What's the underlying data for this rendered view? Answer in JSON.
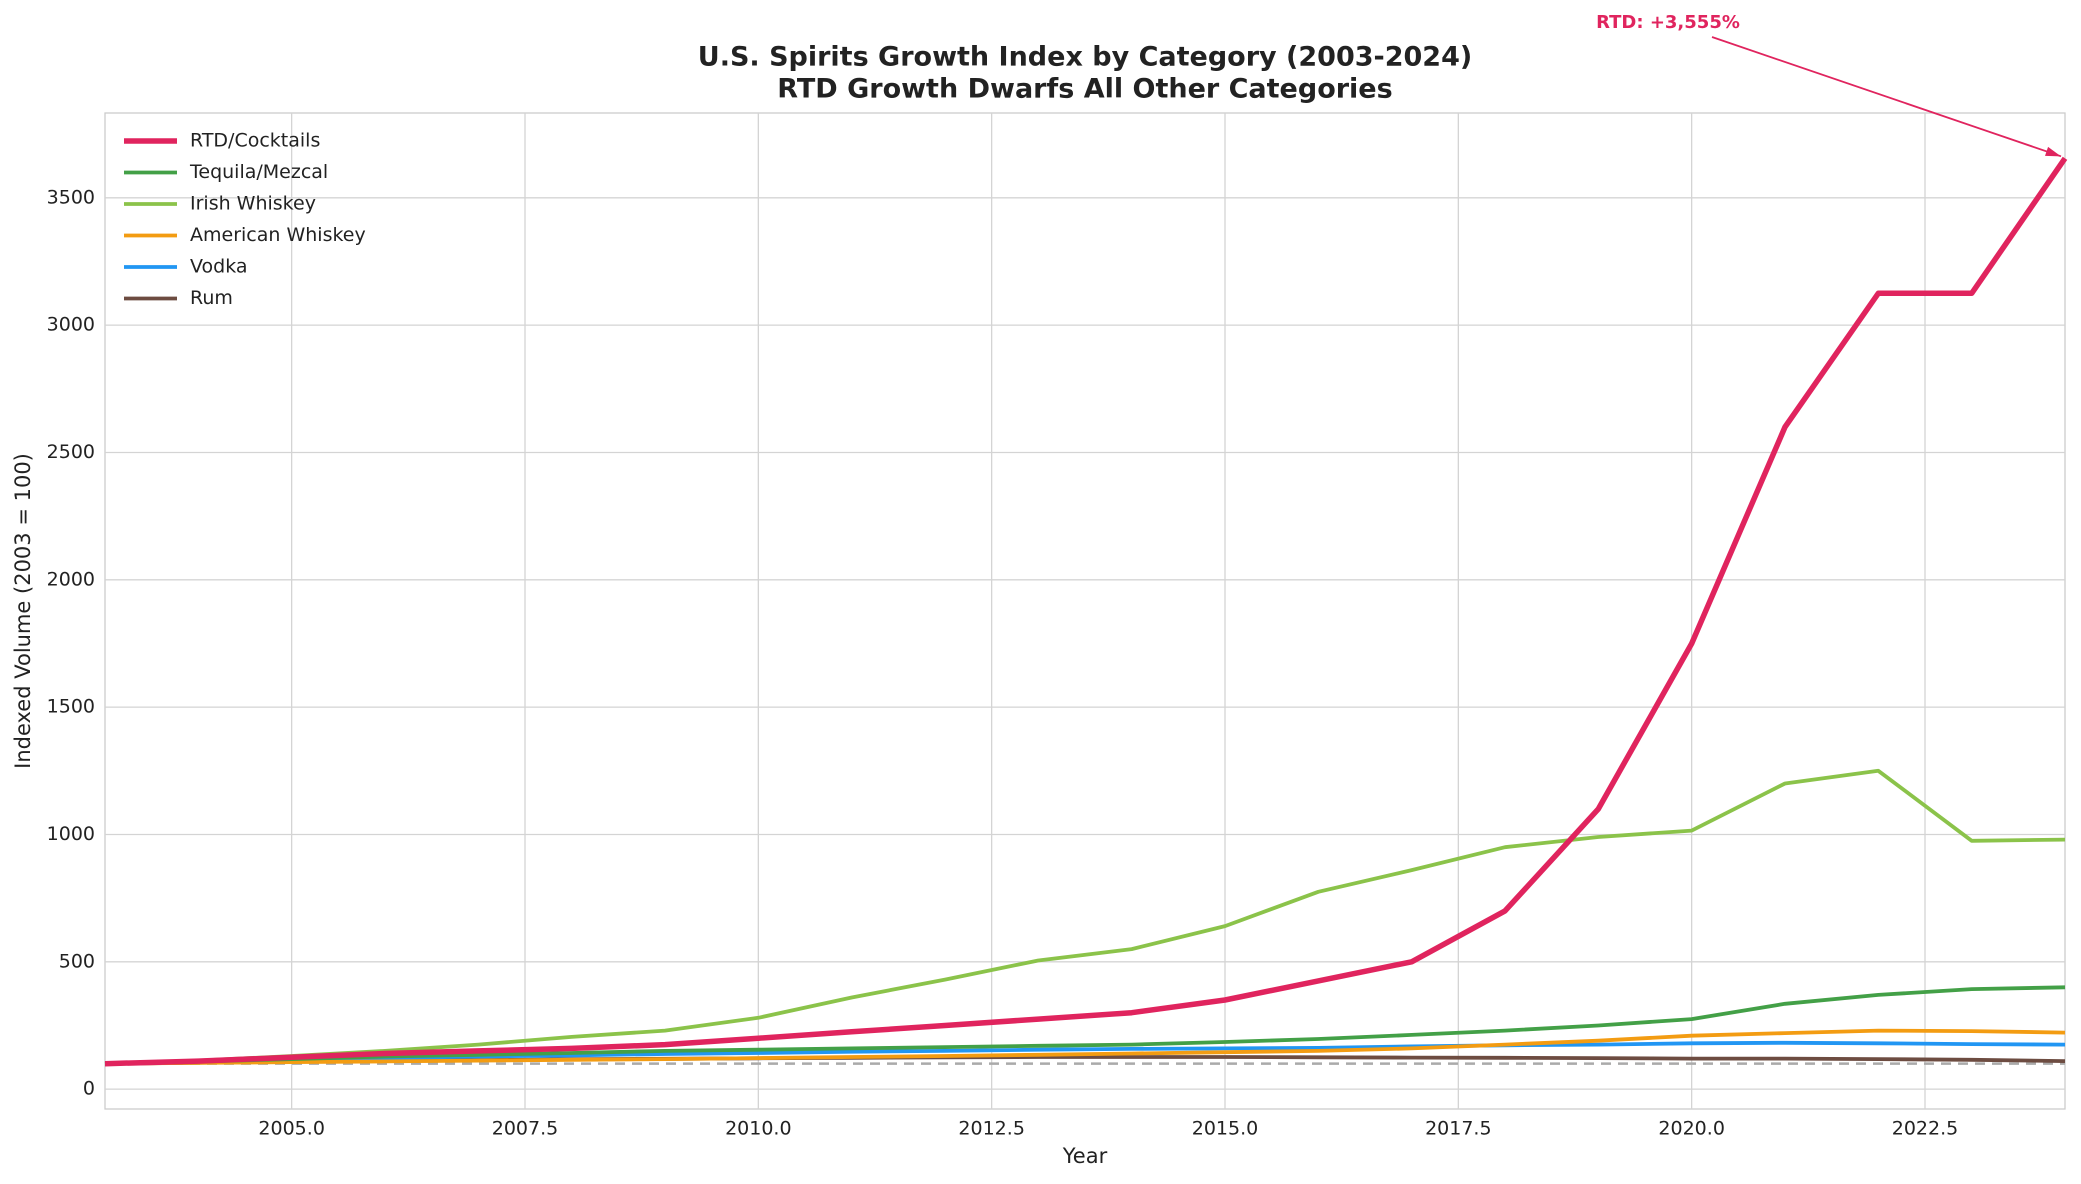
{
  "chart_data": {
    "type": "line",
    "title": "U.S. Spirits Growth Index by Category (2003-2024)",
    "subtitle": "RTD Growth Dwarfs All Other Categories",
    "x_label": "Year",
    "y_label": "Indexed Volume (2003 = 100)",
    "x": [
      2003,
      2004,
      2005,
      2006,
      2007,
      2008,
      2009,
      2010,
      2011,
      2012,
      2013,
      2014,
      2015,
      2016,
      2017,
      2018,
      2019,
      2020,
      2021,
      2022,
      2023,
      2024
    ],
    "series": [
      {
        "name": "RTD/Cocktails",
        "color": "#e0245e",
        "values": [
          100,
          110,
          125,
          140,
          150,
          160,
          175,
          200,
          225,
          250,
          275,
          300,
          350,
          425,
          500,
          700,
          1100,
          1750,
          2600,
          3125,
          3125,
          3655
        ]
      },
      {
        "name": "Tequila/Mezcal",
        "color": "#43a047",
        "values": [
          100,
          108,
          118,
          128,
          135,
          142,
          150,
          155,
          160,
          165,
          170,
          175,
          185,
          197,
          213,
          230,
          250,
          275,
          335,
          370,
          393,
          400
        ]
      },
      {
        "name": "Irish Whiskey",
        "color": "#8bc34a",
        "values": [
          100,
          112,
          130,
          150,
          175,
          205,
          230,
          280,
          360,
          430,
          505,
          550,
          640,
          775,
          860,
          950,
          990,
          1015,
          1200,
          1250,
          975,
          980
        ]
      },
      {
        "name": "American Whiskey",
        "color": "#f39c12",
        "values": [
          100,
          103,
          106,
          109,
          112,
          115,
          118,
          122,
          126,
          130,
          135,
          140,
          145,
          150,
          160,
          175,
          190,
          210,
          220,
          230,
          228,
          222
        ]
      },
      {
        "name": "Vodka",
        "color": "#2196f3",
        "values": [
          100,
          108,
          115,
          122,
          128,
          133,
          138,
          142,
          147,
          150,
          155,
          158,
          160,
          162,
          168,
          172,
          175,
          180,
          182,
          180,
          177,
          175
        ]
      },
      {
        "name": "Rum",
        "color": "#6d4c41",
        "values": [
          100,
          104,
          108,
          111,
          114,
          117,
          119,
          121,
          123,
          125,
          126,
          126,
          126,
          125,
          124,
          123,
          122,
          120,
          120,
          118,
          115,
          110
        ]
      }
    ],
    "baseline": 100,
    "annotation": {
      "text": "RTD: +3,555%",
      "x": 2024,
      "y": 3655,
      "color": "#e0245e"
    },
    "xlim": [
      2003,
      2024
    ],
    "xticks": [
      {
        "value": 2005,
        "label": "2005.0"
      },
      {
        "value": 2007.5,
        "label": "2007.5"
      },
      {
        "value": 2010,
        "label": "2010.0"
      },
      {
        "value": 2012.5,
        "label": "2012.5"
      },
      {
        "value": 2015,
        "label": "2015.0"
      },
      {
        "value": 2017.5,
        "label": "2017.5"
      },
      {
        "value": 2020,
        "label": "2020.0"
      },
      {
        "value": 2022.5,
        "label": "2022.5"
      }
    ],
    "ylim": [
      -78,
      3833
    ],
    "yticks": [
      0,
      500,
      1000,
      1500,
      2000,
      2500,
      3000,
      3500
    ],
    "grid": true,
    "legend": "upper left"
  }
}
